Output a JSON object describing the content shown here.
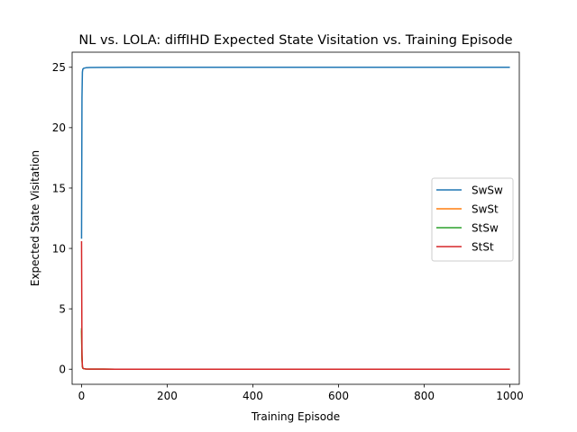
{
  "chart_data": {
    "type": "line",
    "title": "NL vs. LOLA: diffIHD Expected State Visitation vs. Training Episode",
    "xlabel": "Training Episode",
    "ylabel": "Expected State Visitation",
    "xlim": [
      -22,
      1022
    ],
    "ylim": [
      -1.25,
      26.25
    ],
    "xticks": [
      0,
      200,
      400,
      600,
      800,
      1000
    ],
    "yticks": [
      0,
      5,
      10,
      15,
      20,
      25
    ],
    "grid": false,
    "legend_position": "center-right",
    "series": [
      {
        "name": "SwSw",
        "color": "#1f77b4",
        "x": [
          0,
          1,
          2,
          3,
          5,
          10,
          20,
          50,
          100,
          200,
          400,
          600,
          800,
          1000
        ],
        "y": [
          10.8,
          22.5,
          24.6,
          24.85,
          24.92,
          24.96,
          24.98,
          24.99,
          25.0,
          25.0,
          25.0,
          25.0,
          25.0,
          25.0
        ]
      },
      {
        "name": "SwSt",
        "color": "#ff7f0e",
        "x": [
          0,
          1,
          2,
          3,
          5,
          10,
          20,
          50,
          100,
          200,
          400,
          600,
          800,
          1000
        ],
        "y": [
          3.2,
          0.9,
          0.2,
          0.08,
          0.04,
          0.02,
          0.01,
          0.005,
          0.0,
          0.0,
          0.0,
          0.0,
          0.0,
          0.0
        ]
      },
      {
        "name": "StSw",
        "color": "#2ca02c",
        "x": [
          0,
          1,
          2,
          3,
          5,
          10,
          20,
          50,
          100,
          200,
          400,
          600,
          800,
          1000
        ],
        "y": [
          3.4,
          0.9,
          0.2,
          0.08,
          0.04,
          0.02,
          0.01,
          0.005,
          0.0,
          0.0,
          0.0,
          0.0,
          0.0,
          0.0
        ]
      },
      {
        "name": "StSt",
        "color": "#d62728",
        "x": [
          0,
          1,
          2,
          3,
          5,
          10,
          20,
          50,
          100,
          200,
          400,
          600,
          800,
          1000
        ],
        "y": [
          10.6,
          1.2,
          0.25,
          0.1,
          0.05,
          0.02,
          0.01,
          0.005,
          0.0,
          0.0,
          0.0,
          0.0,
          0.0,
          0.0
        ]
      }
    ]
  }
}
